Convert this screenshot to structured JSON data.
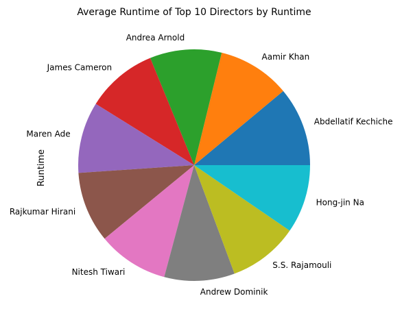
{
  "chart_data": {
    "type": "pie",
    "title": "Average Runtime of Top 10 Directors by Runtime",
    "ylabel": "Runtime",
    "labels": [
      "Abdellatif Kechiche",
      "Aamir Khan",
      "Andrea Arnold",
      "James Cameron",
      "Maren Ade",
      "Rajkumar Hirani",
      "Nitesh Tiwari",
      "Andrew Dominik",
      "S.S. Rajamouli",
      "Hong-jin Na"
    ],
    "values": [
      180,
      165,
      163,
      162,
      162,
      161,
      161,
      160,
      159,
      156
    ],
    "colors": [
      "#1f77b4",
      "#ff7f0e",
      "#2ca02c",
      "#d62728",
      "#9467bd",
      "#8c564b",
      "#e377c2",
      "#7f7f7f",
      "#bcbd22",
      "#17becf"
    ],
    "start_angle": 0,
    "direction": "counterclockwise"
  }
}
